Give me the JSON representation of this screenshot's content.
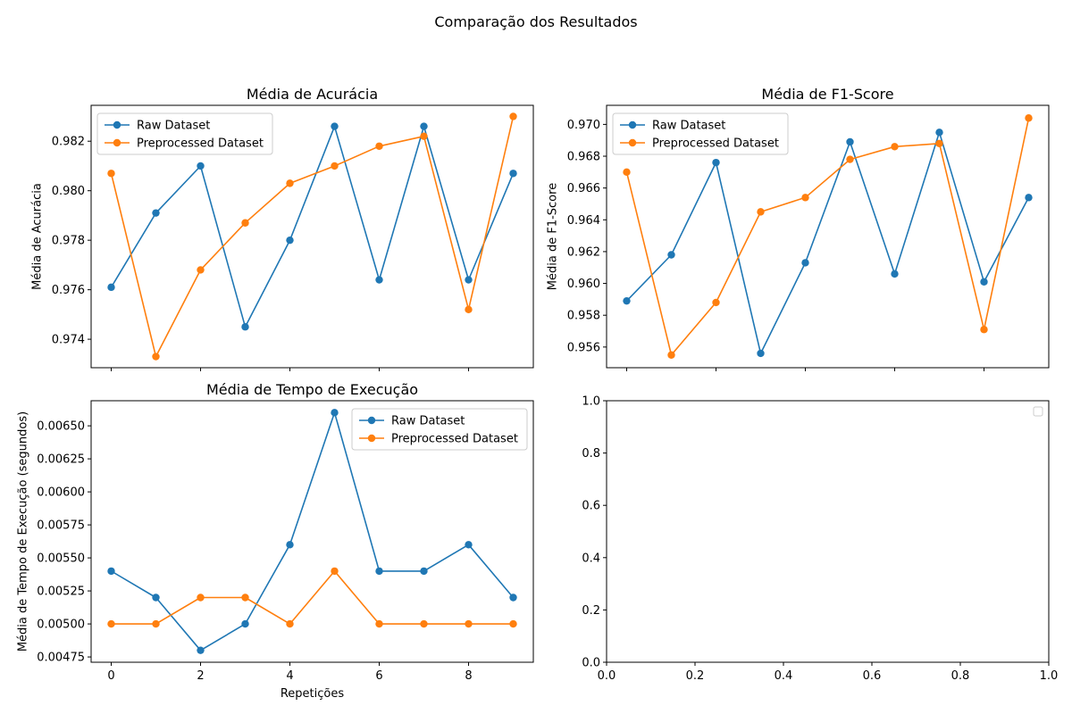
{
  "figure": {
    "suptitle": "Comparação dos Resultados"
  },
  "colors": {
    "raw": "#1f77b4",
    "preprocessed": "#ff7f0e"
  },
  "chart_data": [
    {
      "id": "accuracy",
      "type": "line",
      "title": "Média de Acurácia",
      "xlabel": "",
      "ylabel": "Média de Acurácia",
      "show_x_ticklabels": false,
      "xlim": [
        -0.45,
        9.45
      ],
      "ylim": [
        0.97285,
        0.98345
      ],
      "xticks": [
        0,
        2,
        4,
        6,
        8
      ],
      "yticks": [
        0.974,
        0.976,
        0.978,
        0.98,
        0.982
      ],
      "ytick_labels": [
        "0.974",
        "0.976",
        "0.978",
        "0.980",
        "0.982"
      ],
      "legend": "top-left",
      "x": [
        0,
        1,
        2,
        3,
        4,
        5,
        6,
        7,
        8,
        9
      ],
      "series": [
        {
          "name": "Raw Dataset",
          "color": "#1f77b4",
          "values": [
            0.9761,
            0.9791,
            0.981,
            0.9745,
            0.978,
            0.9826,
            0.9764,
            0.9826,
            0.9764,
            0.9807
          ]
        },
        {
          "name": "Preprocessed Dataset",
          "color": "#ff7f0e",
          "values": [
            0.9807,
            0.9733,
            0.9768,
            0.9787,
            0.9803,
            0.981,
            0.9818,
            0.9822,
            0.9752,
            0.983
          ]
        }
      ]
    },
    {
      "id": "f1",
      "type": "line",
      "title": "Média de F1-Score",
      "xlabel": "",
      "ylabel": "Média de F1-Score",
      "show_x_ticklabels": false,
      "xlim": [
        -0.45,
        9.45
      ],
      "ylim": [
        0.9547,
        0.9712
      ],
      "xticks": [
        0,
        2,
        4,
        6,
        8
      ],
      "yticks": [
        0.956,
        0.958,
        0.96,
        0.962,
        0.964,
        0.966,
        0.968,
        0.97
      ],
      "ytick_labels": [
        "0.956",
        "0.958",
        "0.960",
        "0.962",
        "0.964",
        "0.966",
        "0.968",
        "0.970"
      ],
      "legend": "top-left",
      "x": [
        0,
        1,
        2,
        3,
        4,
        5,
        6,
        7,
        8,
        9
      ],
      "series": [
        {
          "name": "Raw Dataset",
          "color": "#1f77b4",
          "values": [
            0.9589,
            0.9618,
            0.9676,
            0.9556,
            0.9613,
            0.9689,
            0.9606,
            0.9695,
            0.9601,
            0.9654
          ]
        },
        {
          "name": "Preprocessed Dataset",
          "color": "#ff7f0e",
          "values": [
            0.967,
            0.9555,
            0.9588,
            0.9645,
            0.9654,
            0.9678,
            0.9686,
            0.9688,
            0.9571,
            0.9704
          ]
        }
      ]
    },
    {
      "id": "time",
      "type": "line",
      "title": "Média de Tempo de Execução",
      "xlabel": "Repetições",
      "ylabel": "Média de Tempo de Execução (segundos)",
      "show_x_ticklabels": true,
      "xlim": [
        -0.45,
        9.45
      ],
      "ylim": [
        0.00471,
        0.00669
      ],
      "xticks": [
        0,
        2,
        4,
        6,
        8
      ],
      "xtick_labels": [
        "0",
        "2",
        "4",
        "6",
        "8"
      ],
      "yticks": [
        0.00475,
        0.005,
        0.00525,
        0.0055,
        0.00575,
        0.006,
        0.00625,
        0.0065
      ],
      "ytick_labels": [
        "0.00475",
        "0.00500",
        "0.00525",
        "0.00550",
        "0.00575",
        "0.00600",
        "0.00625",
        "0.00650"
      ],
      "legend": "top-right",
      "x": [
        0,
        1,
        2,
        3,
        4,
        5,
        6,
        7,
        8,
        9
      ],
      "series": [
        {
          "name": "Raw Dataset",
          "color": "#1f77b4",
          "values": [
            0.0054,
            0.0052,
            0.0048,
            0.005,
            0.0056,
            0.0066,
            0.0054,
            0.0054,
            0.0056,
            0.0052
          ]
        },
        {
          "name": "Preprocessed Dataset",
          "color": "#ff7f0e",
          "values": [
            0.005,
            0.005,
            0.0052,
            0.0052,
            0.005,
            0.0054,
            0.005,
            0.005,
            0.005,
            0.005
          ]
        }
      ]
    },
    {
      "id": "empty",
      "type": "line",
      "title": "",
      "xlabel": "",
      "ylabel": "",
      "show_x_ticklabels": true,
      "xlim": [
        0,
        1
      ],
      "ylim": [
        0,
        1
      ],
      "xticks": [
        0,
        0.2,
        0.4,
        0.6,
        0.8,
        1
      ],
      "xtick_labels": [
        "0.0",
        "0.2",
        "0.4",
        "0.6",
        "0.8",
        "1.0"
      ],
      "yticks": [
        0,
        0.2,
        0.4,
        0.6,
        0.8,
        1
      ],
      "ytick_labels": [
        "0.0",
        "0.2",
        "0.4",
        "0.6",
        "0.8",
        "1.0"
      ],
      "legend": "top-right",
      "empty_legend": true,
      "x": [],
      "series": []
    }
  ]
}
